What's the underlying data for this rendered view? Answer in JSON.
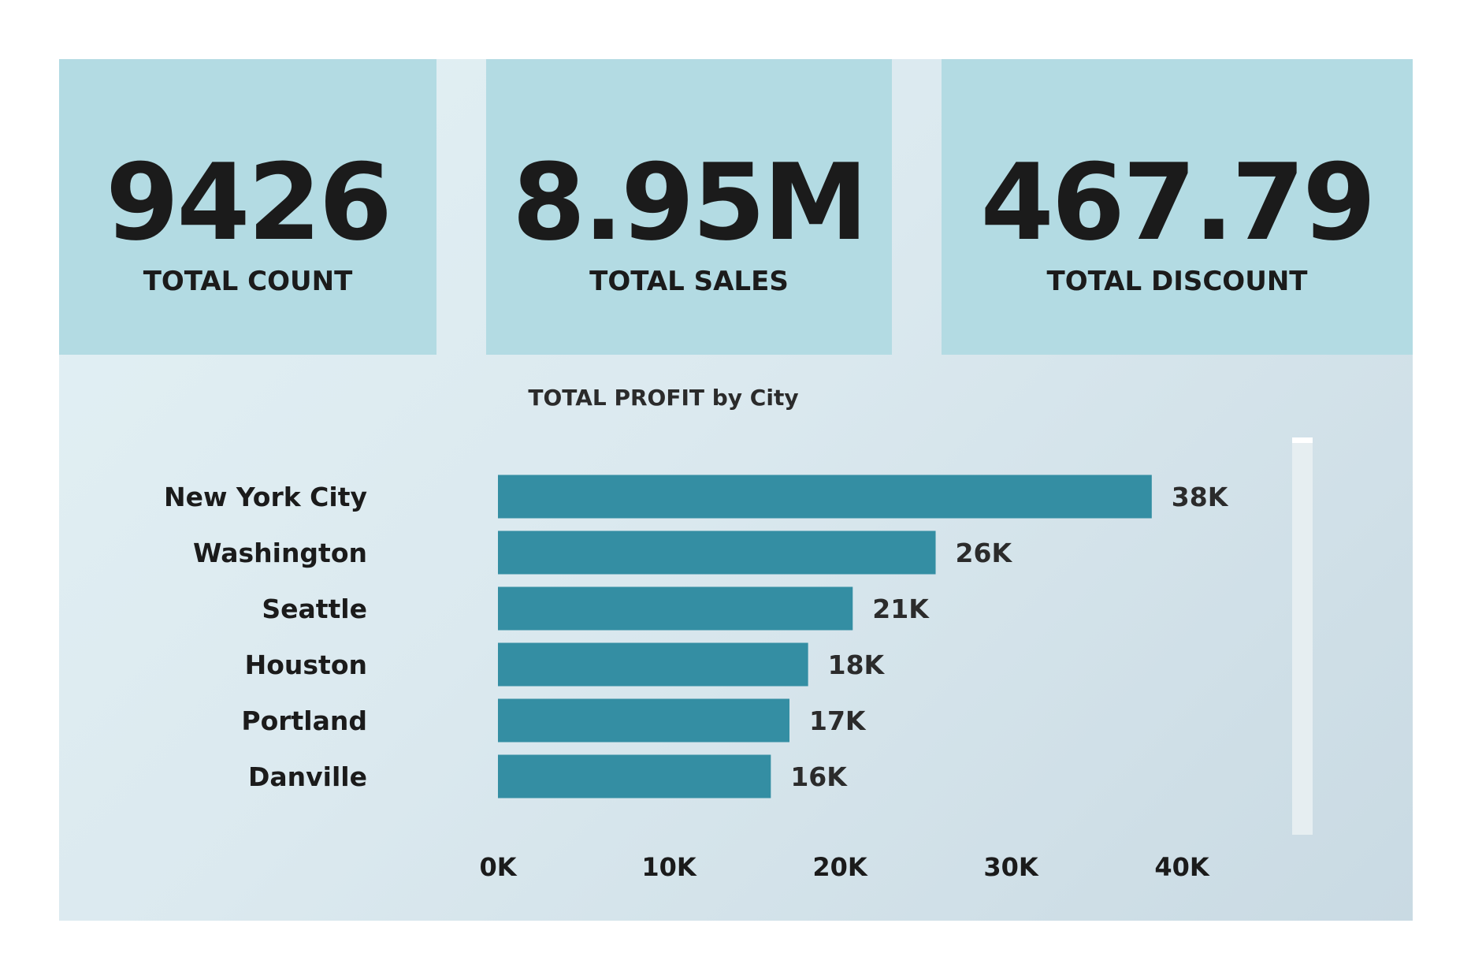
{
  "kpis": [
    {
      "value": "9426",
      "label": "TOTAL COUNT"
    },
    {
      "value": "8.95M",
      "label": "TOTAL SALES"
    },
    {
      "value": "467.79",
      "label": "TOTAL DISCOUNT"
    }
  ],
  "colors": {
    "bar": "#348ea3",
    "card": "#b3dbe3",
    "text": "#1b1b1b"
  },
  "chart_data": {
    "type": "bar",
    "orientation": "horizontal",
    "title": "TOTAL PROFIT by City",
    "categories": [
      "New York City",
      "Washington",
      "Seattle",
      "Houston",
      "Portland",
      "Danville"
    ],
    "values": [
      38240,
      25600,
      20750,
      18140,
      17050,
      15960
    ],
    "data_labels": [
      "38K",
      "26K",
      "21K",
      "18K",
      "17K",
      "16K"
    ],
    "xlim": [
      0,
      40000
    ],
    "x_ticks": [
      "0K",
      "10K",
      "20K",
      "30K",
      "40K"
    ],
    "grid": false
  }
}
